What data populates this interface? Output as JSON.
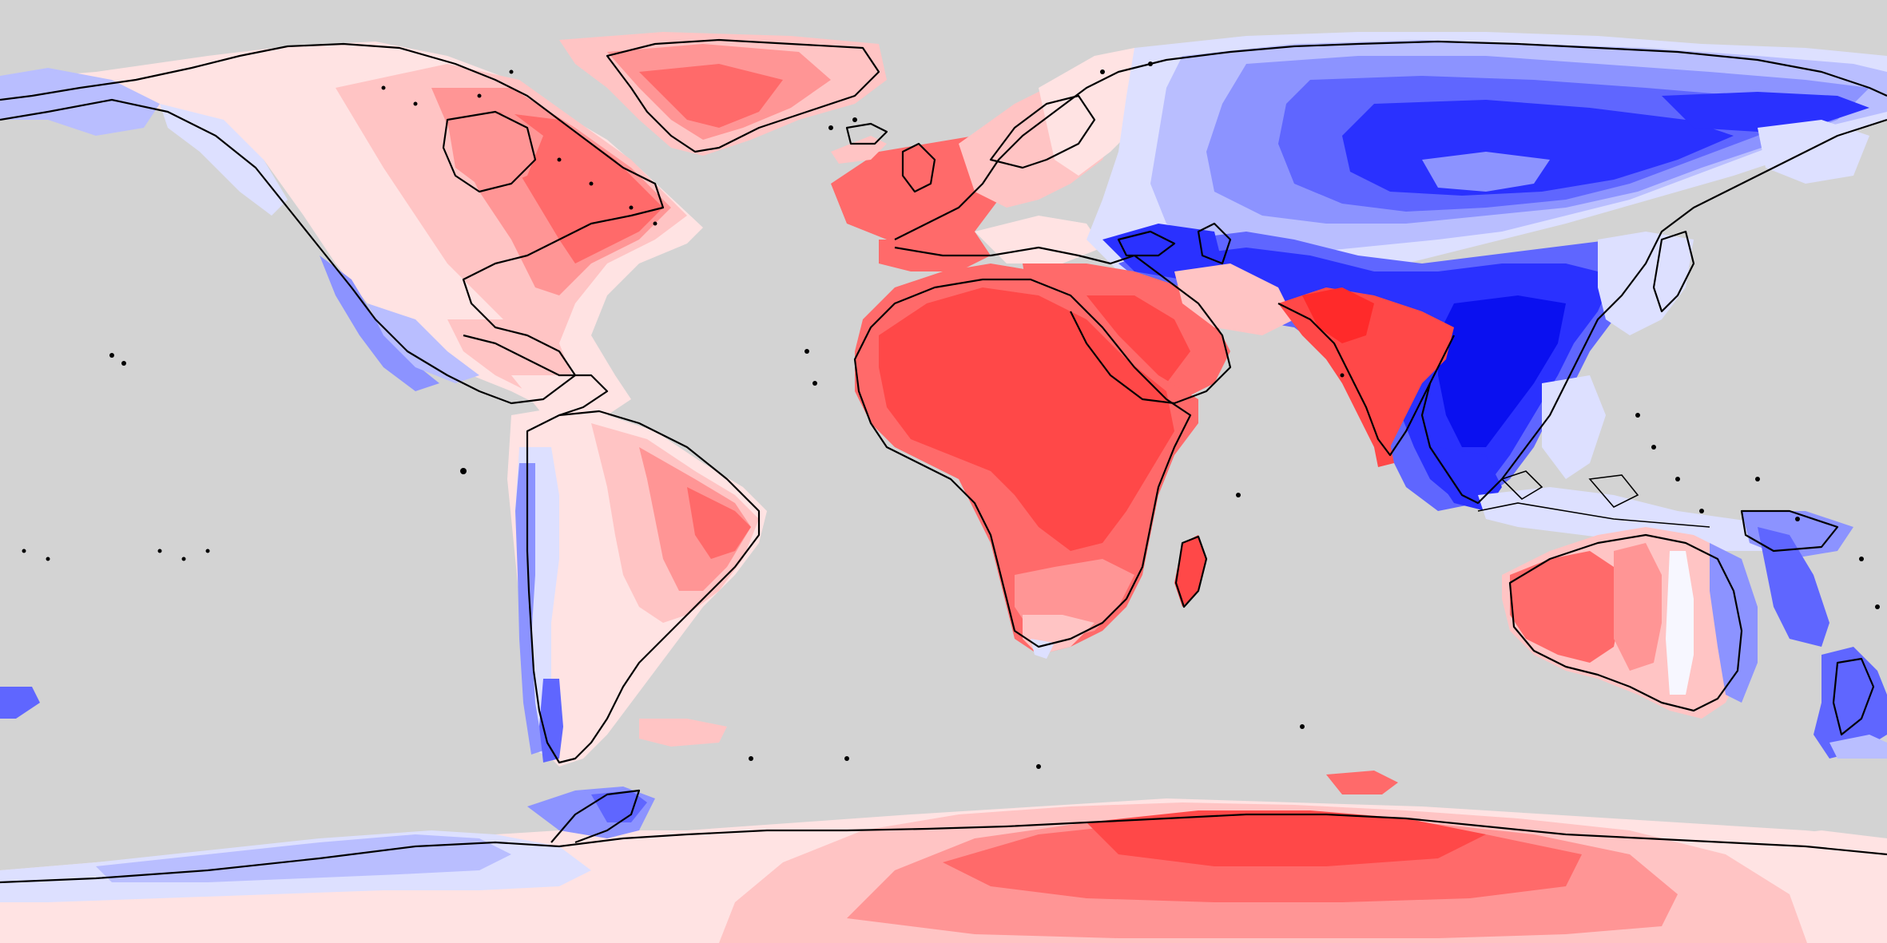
{
  "map": {
    "projection": "equirectangular",
    "background_color": "#d3d3d3",
    "coastline_color": "#000000",
    "palette": {
      "strong_red": "#ff2a2a",
      "red": "#ff4848",
      "mid_red": "#ff6a6a",
      "light_red": "#ff9595",
      "pale_red": "#ffc4c4",
      "faint_red": "#ffe3e3",
      "white": "#f7f7ff",
      "faint_blue": "#dde0ff",
      "pale_blue": "#b9beff",
      "light_blue": "#8c93ff",
      "mid_blue": "#5f66ff",
      "blue": "#2a31ff",
      "strong_blue": "#0a10f0"
    },
    "regions": [
      {
        "name": "north-america",
        "dominant_color": "red"
      },
      {
        "name": "greenland",
        "dominant_color": "red"
      },
      {
        "name": "europe-west",
        "dominant_color": "red"
      },
      {
        "name": "africa",
        "dominant_color": "red"
      },
      {
        "name": "arabia",
        "dominant_color": "red"
      },
      {
        "name": "india",
        "dominant_color": "red"
      },
      {
        "name": "asia-north",
        "dominant_color": "blue"
      },
      {
        "name": "east-asia",
        "dominant_color": "blue"
      },
      {
        "name": "south-america",
        "dominant_color": "mixed"
      },
      {
        "name": "australia",
        "dominant_color": "mixed"
      },
      {
        "name": "antarctica",
        "dominant_color": "red"
      }
    ]
  }
}
